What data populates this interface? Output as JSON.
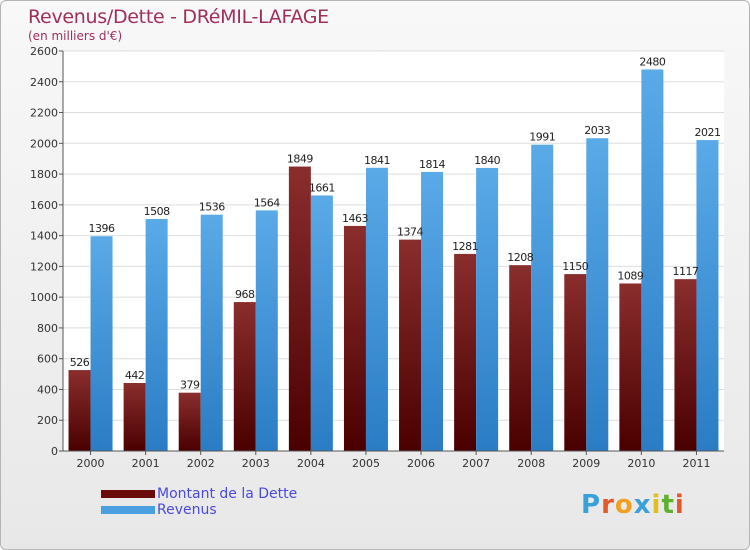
{
  "title": "Revenus/Dette - DRéMIL-LAFAGE",
  "subtitle": "(en milliers d'€)",
  "legend": [
    {
      "label": "Montant de la Dette",
      "color": "#6b0a0a"
    },
    {
      "label": "Revenus",
      "color": "#4a9fe0"
    }
  ],
  "logo": {
    "letters": [
      "P",
      "r",
      "o",
      "x",
      "i",
      "t",
      "i"
    ],
    "colors": [
      "#3aa0d8",
      "#e05a2a",
      "#f0a020",
      "#3aa0d8",
      "#e0c020",
      "#60b030",
      "#e05a2a"
    ]
  },
  "chart_data": {
    "type": "bar",
    "categories": [
      "2000",
      "2001",
      "2002",
      "2003",
      "2004",
      "2005",
      "2006",
      "2007",
      "2008",
      "2009",
      "2010",
      "2011"
    ],
    "series": [
      {
        "name": "Montant de la Dette",
        "color": "#6b0a0a",
        "values": [
          526,
          442,
          379,
          968,
          1849,
          1463,
          1374,
          1281,
          1208,
          1150,
          1089,
          1117
        ],
        "labels": [
          "526",
          "442",
          "379",
          "968",
          "1849",
          "1463",
          "1374",
          "1281",
          "1208",
          "1150",
          "1089",
          "1117"
        ]
      },
      {
        "name": "Revenus",
        "color": "#4a9fe0",
        "values": [
          1396,
          1508,
          1536,
          1564,
          1661,
          1841,
          1814,
          1840,
          1991,
          2033,
          2480,
          2021
        ],
        "labels": [
          "1396",
          "1508",
          "1536",
          "1564",
          "1661",
          "1841",
          "1814",
          "1840",
          "1991",
          "2033",
          "2480",
          "2021"
        ]
      }
    ],
    "ylim": [
      0,
      2600
    ],
    "yticks": [
      0,
      200,
      400,
      600,
      800,
      1000,
      1200,
      1400,
      1600,
      1800,
      2000,
      2200,
      2400,
      2600
    ],
    "grid": true,
    "legend_position": "bottom-left"
  }
}
